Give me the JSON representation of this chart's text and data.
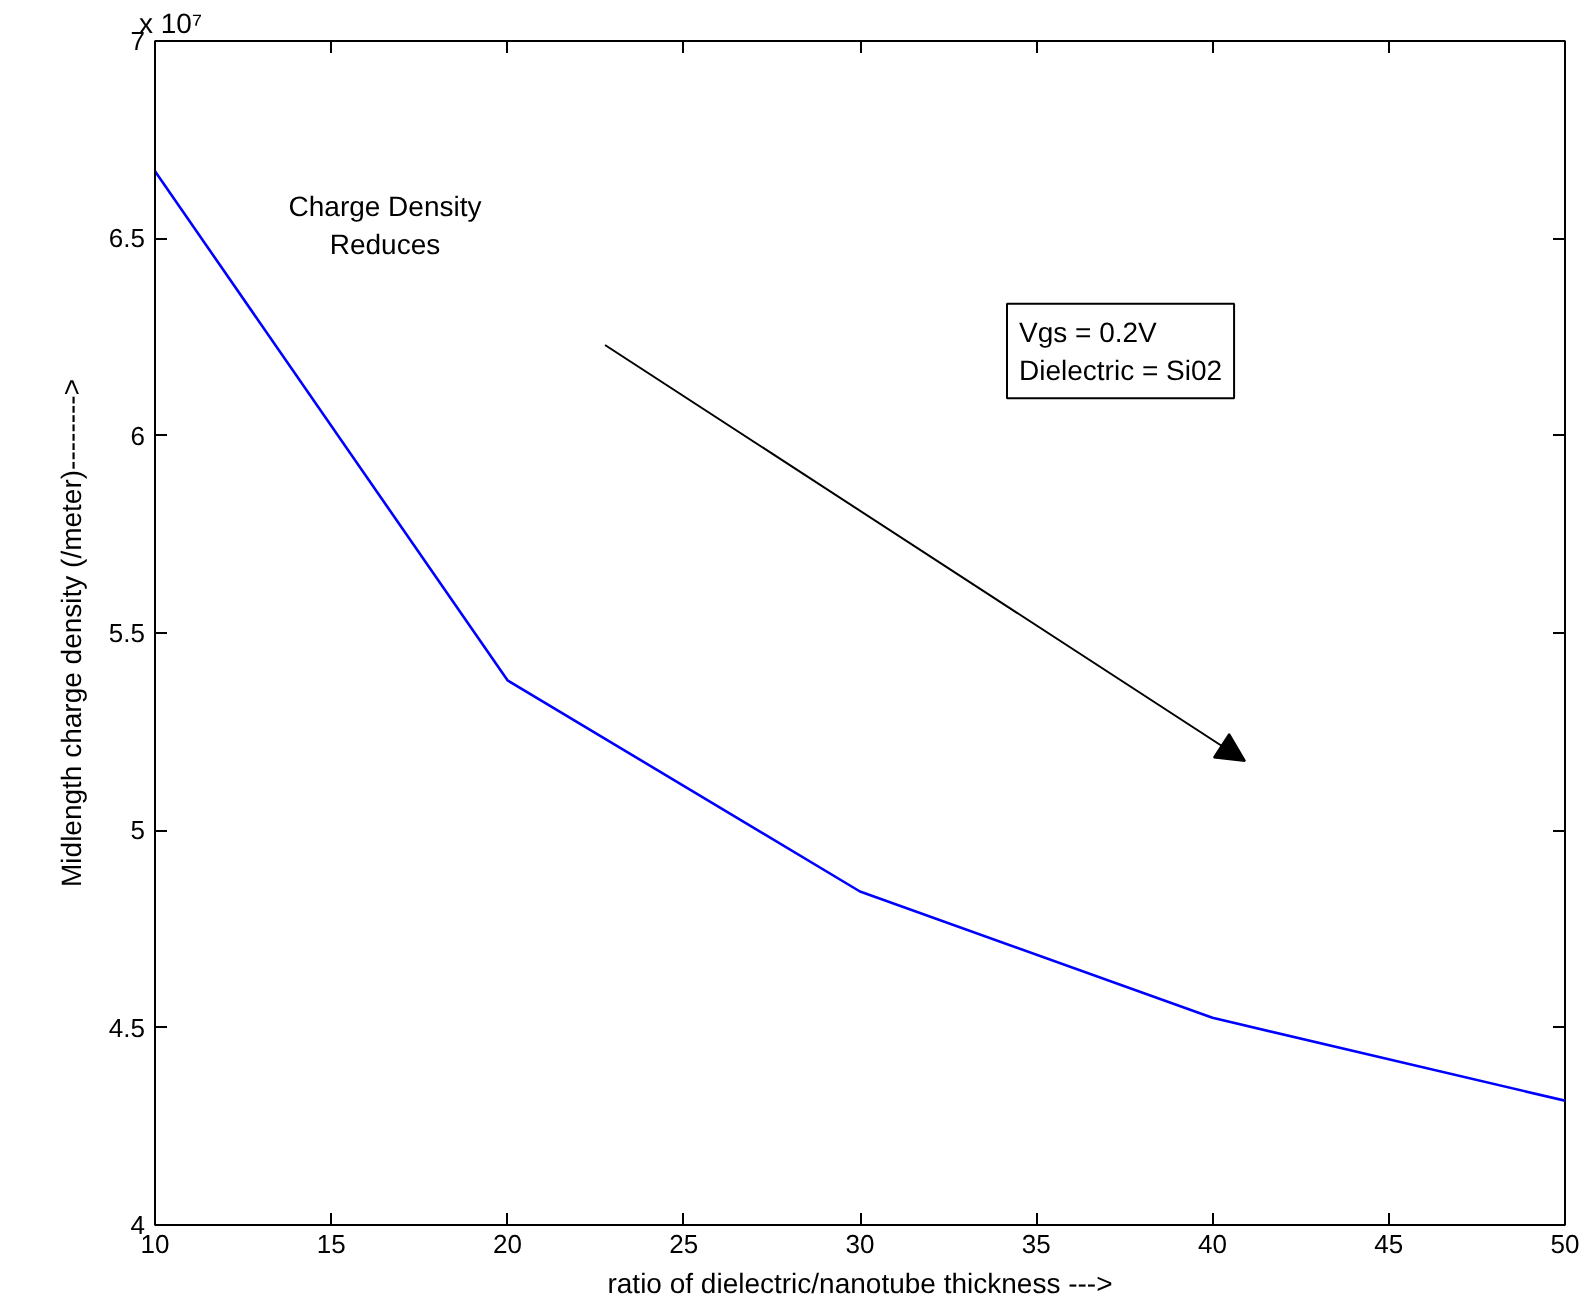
{
  "chart_data": {
    "type": "line",
    "xlabel": "ratio of dielectric/nanotube thickness --->",
    "ylabel": "Midlength charge density (/meter)-------->",
    "x": [
      10,
      20,
      30,
      40,
      50
    ],
    "series": [
      {
        "color": "#0000ff",
        "values": [
          6.67,
          5.38,
          4.845,
          4.525,
          4.315
        ]
      }
    ],
    "xlim": [
      10,
      50
    ],
    "ylim": [
      4,
      7
    ],
    "xticks": [
      10,
      15,
      20,
      25,
      30,
      35,
      40,
      45,
      50
    ],
    "yticks": [
      4,
      4.5,
      5,
      5.5,
      6,
      6.5,
      7
    ],
    "annotations": [
      "x 10⁷",
      "Charge Density\nReduces",
      "Vgs = 0.2V\nDielectric = Si02"
    ],
    "grid": false,
    "marker": "none",
    "line_style": "solid"
  }
}
